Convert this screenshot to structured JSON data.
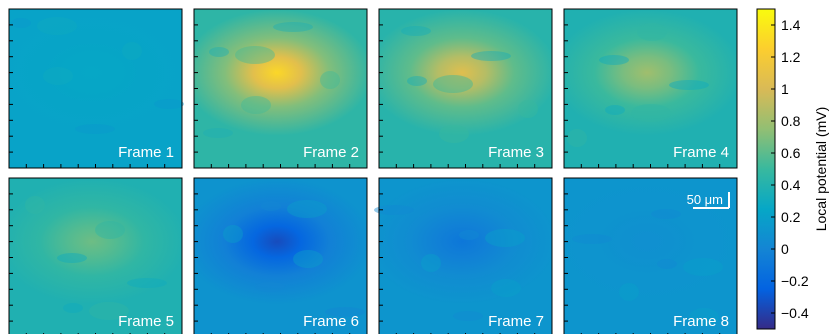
{
  "chart_data": {
    "type": "heatmap",
    "panels": [
      {
        "label": "Frame 1",
        "peak_mV": 0.25,
        "background_mV": 0.22
      },
      {
        "label": "Frame 2",
        "peak_mV": 1.3,
        "background_mV": 0.45
      },
      {
        "label": "Frame 3",
        "peak_mV": 1.05,
        "background_mV": 0.42
      },
      {
        "label": "Frame 4",
        "peak_mV": 0.8,
        "background_mV": 0.38
      },
      {
        "label": "Frame 5",
        "peak_mV": 0.65,
        "background_mV": 0.38
      },
      {
        "label": "Frame 6",
        "peak_mV": -0.35,
        "background_mV": 0.1
      },
      {
        "label": "Frame 7",
        "peak_mV": -0.1,
        "background_mV": 0.12
      },
      {
        "label": "Frame 8",
        "peak_mV": 0.08,
        "background_mV": 0.12
      }
    ],
    "colorbar": {
      "label": "Local potential (mV)",
      "range": [
        -0.5,
        1.5
      ],
      "ticks": [
        -0.4,
        -0.2,
        0,
        0.2,
        0.4,
        0.6,
        0.8,
        1,
        1.2,
        1.4
      ],
      "tick_labels": [
        "−0.4",
        "−0.2",
        "0",
        "0.2",
        "0.4",
        "0.6",
        "0.8",
        "1",
        "1.2",
        "1.4"
      ],
      "colormap": "parula",
      "colors": [
        "#352a87",
        "#0363e1",
        "#1485d4",
        "#06a7c6",
        "#38b99e",
        "#92bf73",
        "#d9ba56",
        "#fcce2e",
        "#f9fb0e"
      ]
    },
    "scale_bar": {
      "label": "50 μm",
      "panel": "Frame 8"
    }
  }
}
